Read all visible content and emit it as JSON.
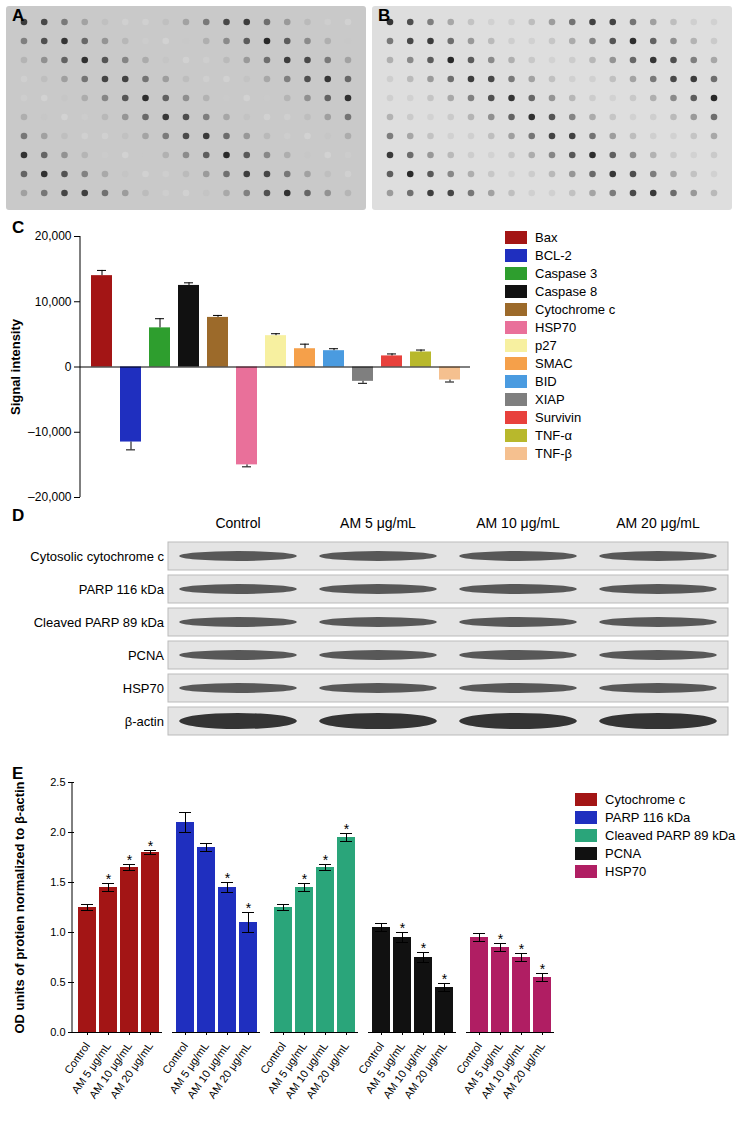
{
  "arrays": {
    "labels": [
      "A",
      "B"
    ]
  },
  "chart_labels": [
    "C",
    "E"
  ],
  "chart_data": [
    {
      "type": "bar",
      "categories": [
        "Bax",
        "BCL-2",
        "Caspase 3",
        "Caspase 8",
        "Cytochrome c",
        "HSP70",
        "p27",
        "SMAC",
        "BID",
        "XIAP",
        "Survivin",
        "TNF-α",
        "TNF-β"
      ],
      "values": [
        14000,
        -11500,
        6000,
        12500,
        7600,
        -15000,
        4800,
        2800,
        2500,
        -2200,
        1700,
        2300,
        -2000
      ],
      "errors": [
        800,
        1200,
        1400,
        400,
        300,
        300,
        300,
        700,
        300,
        300,
        300,
        300,
        300
      ],
      "colors": [
        "#a31515",
        "#1f2fbf",
        "#2e9e2e",
        "#111111",
        "#9c6a2a",
        "#e9709a",
        "#f7f0a0",
        "#f5a04a",
        "#4a9be0",
        "#7f7f7f",
        "#e8413c",
        "#b8b82c",
        "#f5c08f"
      ],
      "ylim": [
        -20000,
        20000
      ],
      "yticks": [
        {
          "value": -20000,
          "label": "–20,000"
        },
        {
          "value": -10000,
          "label": "–10,000"
        },
        0,
        {
          "value": 10000,
          "label": "10,000"
        },
        {
          "value": 20000,
          "label": "20,000"
        }
      ],
      "y_label": "Signal intensity",
      "tick_labels": "y",
      "legend": "right"
    },
    {
      "type": "bar",
      "categories": [
        "Control",
        "AM 5 μg/mL",
        "AM 10 μg/mL",
        "AM 20 μg/mL"
      ],
      "series": [
        {
          "name": "Cytochrome c",
          "color": "#a31515",
          "values": [
            1.25,
            1.45,
            1.65,
            1.8
          ],
          "errors": [
            0.03,
            0.04,
            0.03,
            0.02
          ],
          "significance": [
            null,
            "*",
            "*",
            "*"
          ]
        },
        {
          "name": "PARP 116 kDa",
          "color": "#1f2fbf",
          "values": [
            2.1,
            1.85,
            1.45,
            1.1
          ],
          "errors": [
            0.1,
            0.04,
            0.05,
            0.1
          ],
          "significance": [
            null,
            null,
            "*",
            "*"
          ]
        },
        {
          "name": "Cleaved PARP 89 kDa",
          "color": "#2aa57a",
          "values": [
            1.25,
            1.45,
            1.65,
            1.95
          ],
          "errors": [
            0.03,
            0.04,
            0.03,
            0.04
          ],
          "significance": [
            null,
            "*",
            "*",
            "*"
          ]
        },
        {
          "name": "PCNA",
          "color": "#111111",
          "values": [
            1.05,
            0.95,
            0.75,
            0.45
          ],
          "errors": [
            0.04,
            0.05,
            0.05,
            0.04
          ],
          "significance": [
            null,
            "*",
            "*",
            "*"
          ]
        },
        {
          "name": "HSP70",
          "color": "#b01e63",
          "values": [
            0.95,
            0.85,
            0.75,
            0.55
          ],
          "errors": [
            0.04,
            0.04,
            0.04,
            0.04
          ],
          "significance": [
            null,
            "*",
            "*",
            "*"
          ]
        }
      ],
      "ylim": [
        0,
        2.5
      ],
      "yticks": [
        {
          "value": 0,
          "label": "0.0"
        },
        0.5,
        {
          "value": 1,
          "label": "1.0"
        },
        1.5,
        {
          "value": 2,
          "label": "2.0"
        },
        2.5
      ],
      "y_label": "OD units of protien normalized to β-actin",
      "legend": "right"
    }
  ],
  "blot": {
    "label": "D",
    "columns": [
      "Control",
      "AM 5 μg/mL",
      "AM 10 μg/mL",
      "AM 20 μg/mL"
    ],
    "rows": [
      "Cytosolic cytochrome c",
      "PARP 116 kDa",
      "Cleaved PARP 89 kDa",
      "PCNA",
      "HSP70",
      "β-actin"
    ]
  }
}
